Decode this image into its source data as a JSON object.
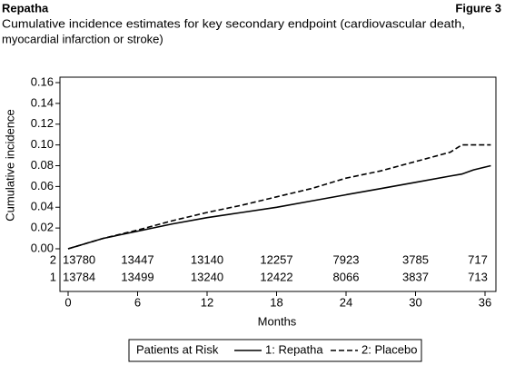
{
  "chart_data": {
    "type": "line",
    "title": "Repatha",
    "figure_label": "Figure 3",
    "subtitle": [
      "Cumulative incidence estimates for key secondary endpoint (cardiovascular death,",
      "myocardial infarction or stroke)"
    ],
    "y_label": "Cumulative incidence",
    "x_label": "Months",
    "x": [
      0,
      3,
      6,
      9,
      12,
      15,
      18,
      21,
      24,
      27,
      30,
      33,
      34,
      35,
      36.5
    ],
    "series": [
      {
        "name": "1: Repatha",
        "color": "#000000",
        "dash": "solid",
        "values": [
          0,
          0.01,
          0.017,
          0.024,
          0.03,
          0.035,
          0.04,
          0.046,
          0.052,
          0.058,
          0.064,
          0.07,
          0.072,
          0.076,
          0.08
        ]
      },
      {
        "name": "2: Placebo",
        "color": "#000000",
        "dash": "dashed",
        "values": [
          0,
          0.01,
          0.018,
          0.027,
          0.035,
          0.042,
          0.05,
          0.058,
          0.068,
          0.075,
          0.084,
          0.093,
          0.1,
          0.1,
          0.1
        ]
      }
    ],
    "xlim": [
      0,
      36
    ],
    "xticks": [
      0,
      6,
      12,
      18,
      24,
      30,
      36
    ],
    "ylim": [
      0,
      0.16
    ],
    "yticks": [
      {
        "value": 0,
        "label": "0.00"
      },
      {
        "value": 0.02,
        "label": "0.02"
      },
      {
        "value": 0.04,
        "label": "0.04"
      },
      {
        "value": 0.06,
        "label": "0.06"
      },
      {
        "value": 0.08,
        "label": "0.08"
      },
      {
        "value": 0.1,
        "label": "0.10"
      },
      {
        "value": 0.12,
        "label": "0.12"
      },
      {
        "value": 0.14,
        "label": "0.14"
      },
      {
        "value": 0.16,
        "label": "0.16"
      }
    ],
    "legend_title": "Patients at Risk",
    "risk_table": {
      "months": [
        0,
        6,
        12,
        18,
        24,
        30,
        36
      ],
      "rows": [
        {
          "label": "2",
          "values": [
            13780,
            13447,
            13140,
            12257,
            7923,
            3785,
            717
          ]
        },
        {
          "label": "1",
          "values": [
            13784,
            13499,
            13240,
            12422,
            8066,
            3837,
            713
          ]
        }
      ]
    }
  }
}
